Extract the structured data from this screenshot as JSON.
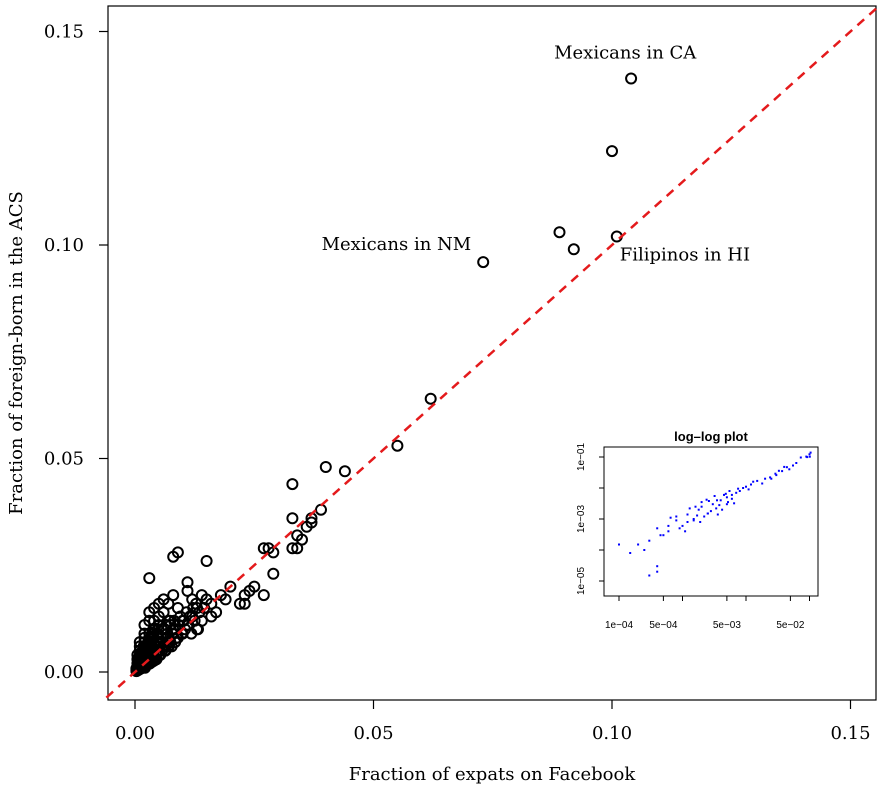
{
  "chart_data": [
    {
      "type": "scatter",
      "title": "",
      "xlabel": "Fraction of expats on Facebook",
      "ylabel": "Fraction of foreign-born in the ACS",
      "xlim": [
        -0.006,
        0.155
      ],
      "ylim": [
        -0.006,
        0.156
      ],
      "x_ticks": [
        "0.00",
        "0.05",
        "0.10",
        "0.15"
      ],
      "y_ticks": [
        "0.00",
        "0.05",
        "0.10",
        "0.15"
      ],
      "reference_line": {
        "type": "y=x",
        "color": "#e41a1c",
        "style": "dashed"
      },
      "marker": "open-circle",
      "marker_color": "#000000",
      "annotations": [
        {
          "text": "Mexicans in CA",
          "x": 0.104,
          "y": 0.139
        },
        {
          "text": "Mexicans in NM",
          "x": 0.073,
          "y": 0.096
        },
        {
          "text": "Filipinos in HI",
          "x": 0.101,
          "y": 0.102
        }
      ],
      "series": [
        {
          "x": [
            0.104,
            0.1,
            0.089,
            0.092,
            0.101,
            0.073,
            0.062,
            0.055,
            0.044,
            0.04,
            0.039,
            0.037,
            0.037,
            0.036,
            0.035,
            0.033,
            0.033,
            0.033,
            0.034,
            0.034,
            0.029,
            0.028,
            0.029,
            0.027,
            0.027,
            0.025,
            0.024,
            0.023,
            0.023,
            0.022,
            0.02,
            0.019,
            0.018,
            0.017,
            0.016,
            0.016,
            0.015,
            0.015,
            0.014,
            0.014,
            0.013,
            0.013,
            0.012,
            0.012,
            0.011,
            0.011,
            0.011,
            0.01,
            0.01,
            0.009,
            0.009,
            0.009,
            0.008,
            0.008,
            0.008,
            0.007,
            0.007,
            0.007,
            0.006,
            0.006,
            0.006,
            0.005,
            0.005,
            0.005,
            0.005,
            0.004,
            0.004,
            0.004,
            0.004,
            0.004,
            0.003,
            0.003,
            0.003,
            0.003,
            0.003,
            0.003,
            0.002,
            0.002,
            0.002,
            0.002,
            0.002,
            0.002,
            0.002,
            0.001,
            0.001,
            0.001,
            0.001,
            0.001,
            0.001,
            0.001,
            0.0005,
            0.0005,
            0.0005,
            0.0005,
            0.0008,
            0.0012,
            0.0015,
            0.0018,
            0.0022,
            0.0025,
            0.0028,
            0.0032,
            0.0035,
            0.0038,
            0.0042,
            0.0045,
            0.0048,
            0.0052,
            0.0055,
            0.0058,
            0.0062,
            0.0065,
            0.0068,
            0.0072,
            0.0075,
            0.0078,
            0.0082,
            0.0085,
            0.0088,
            0.0092,
            0.0095,
            0.0098,
            0.0102,
            0.0105,
            0.0108,
            0.0112,
            0.0115,
            0.0118,
            0.0122,
            0.0125,
            0.0128,
            0.0132,
            0.0135,
            0.0145,
            0.0008,
            0.0011,
            0.0014,
            0.0017,
            0.0021,
            0.0024,
            0.0027,
            0.0031,
            0.0034,
            0.0037,
            0.0041,
            0.0044,
            0.0047,
            0.0051,
            0.0054,
            0.0057,
            0.0061,
            0.0064,
            0.0067,
            0.0071,
            0.0074,
            0.0077,
            0.0081,
            0.0084,
            0.0087,
            0.0009,
            0.0013,
            0.0016,
            0.0019,
            0.0023,
            0.0026,
            0.0029,
            0.0033,
            0.0036,
            0.0039,
            0.0043,
            0.0046,
            0.0049,
            0.0053,
            0.0056,
            0.0059,
            0.0063,
            0.0066,
            0.0069,
            0.0073,
            0.0003,
            0.0004,
            0.0006,
            0.0007,
            0.0009,
            0.001,
            0.0012,
            0.0013,
            0.0014,
            0.0016,
            0.0017,
            0.0019,
            0.002,
            0.0021,
            0.0023,
            0.0024,
            0.0026,
            0.0027,
            0.0029,
            0.003,
            0.0003,
            0.0005,
            0.0007,
            0.0009,
            0.0011,
            0.0013,
            0.0015,
            0.0017,
            0.0019,
            0.0021,
            0.0023,
            0.0025,
            0.0027,
            0.0029,
            0.0031,
            0.0033,
            0.0035,
            0.0037,
            0.0039,
            0.0041,
            0.0003,
            0.0006,
            0.0009,
            0.0012,
            0.0015,
            0.0018,
            0.0021,
            0.0024,
            0.0027,
            0.003,
            0.0033,
            0.0036,
            0.0039,
            0.0042,
            0.0045
          ],
          "y": [
            0.139,
            0.122,
            0.103,
            0.099,
            0.102,
            0.096,
            0.064,
            0.053,
            0.047,
            0.048,
            0.038,
            0.036,
            0.035,
            0.034,
            0.031,
            0.044,
            0.036,
            0.029,
            0.029,
            0.032,
            0.028,
            0.029,
            0.023,
            0.029,
            0.018,
            0.02,
            0.019,
            0.016,
            0.018,
            0.016,
            0.02,
            0.017,
            0.018,
            0.014,
            0.016,
            0.013,
            0.026,
            0.017,
            0.018,
            0.012,
            0.015,
            0.01,
            0.013,
            0.017,
            0.021,
            0.019,
            0.011,
            0.012,
            0.009,
            0.028,
            0.015,
            0.008,
            0.027,
            0.018,
            0.01,
            0.012,
            0.016,
            0.007,
            0.017,
            0.014,
            0.006,
            0.011,
            0.013,
            0.016,
            0.005,
            0.015,
            0.01,
            0.008,
            0.003,
            0.012,
            0.022,
            0.009,
            0.007,
            0.005,
            0.012,
            0.014,
            0.011,
            0.008,
            0.006,
            0.004,
            0.009,
            0.003,
            0.007,
            0.006,
            0.004,
            0.002,
            0.005,
            0.007,
            0.003,
            0.001,
            0.003,
            0.001,
            0.002,
            0.004,
            0.002,
            0.004,
            0.003,
            0.006,
            0.005,
            0.004,
            0.007,
            0.006,
            0.005,
            0.008,
            0.006,
            0.007,
            0.009,
            0.007,
            0.008,
            0.006,
            0.01,
            0.008,
            0.009,
            0.007,
            0.011,
            0.009,
            0.012,
            0.01,
            0.008,
            0.011,
            0.013,
            0.009,
            0.012,
            0.01,
            0.014,
            0.011,
            0.013,
            0.009,
            0.015,
            0.012,
            0.016,
            0.01,
            0.014,
            0.015,
            0.001,
            0.002,
            0.003,
            0.002,
            0.001,
            0.004,
            0.003,
            0.002,
            0.005,
            0.004,
            0.003,
            0.006,
            0.005,
            0.004,
            0.007,
            0.005,
            0.006,
            0.005,
            0.008,
            0.006,
            0.007,
            0.006,
            0.009,
            0.007,
            0.008,
            0.003,
            0.001,
            0.005,
            0.004,
            0.006,
            0.002,
            0.007,
            0.004,
            0.008,
            0.005,
            0.003,
            0.009,
            0.006,
            0.004,
            0.01,
            0.007,
            0.005,
            0.011,
            0.006,
            0.012,
            0.0005,
            0.001,
            0.0008,
            0.0015,
            0.001,
            0.002,
            0.0012,
            0.0025,
            0.0015,
            0.003,
            0.0018,
            0.0035,
            0.0022,
            0.004,
            0.0025,
            0.0045,
            0.003,
            0.005,
            0.0032,
            0.0055,
            0.0008,
            0.0012,
            0.0018,
            0.0022,
            0.0028,
            0.0032,
            0.0038,
            0.0042,
            0.0048,
            0.0052,
            0.0058,
            0.0062,
            0.0068,
            0.0072,
            0.0078,
            0.0082,
            0.0088,
            0.0092,
            0.0098,
            0.0102,
            0.0002,
            0.0004,
            0.0006,
            0.0008,
            0.001,
            0.0012,
            0.0014,
            0.0016,
            0.0018,
            0.002,
            0.0022,
            0.0024,
            0.0026,
            0.0028,
            0.003
          ]
        }
      ]
    },
    {
      "type": "scatter",
      "title": "log–log plot",
      "xlabel": "",
      "ylabel": "",
      "x_scale": "log",
      "y_scale": "log",
      "xlim": [
        5e-05,
        0.15
      ],
      "ylim": [
        5e-06,
        0.15
      ],
      "x_ticks": [
        "1e−04",
        "5e−04",
        "5e−03",
        "5e−02"
      ],
      "y_ticks": [
        "1e−05",
        "1e−03",
        "1e−01"
      ],
      "marker": "dot",
      "marker_color": "#0000ff",
      "series": [
        {
          "x": [
            0.1,
            0.104,
            0.092,
            0.089,
            0.101,
            0.073,
            0.062,
            0.055,
            0.044,
            0.04,
            0.033,
            0.029,
            0.025,
            0.02,
            0.015,
            0.012,
            0.01,
            0.008,
            0.006,
            0.005,
            0.004,
            0.003,
            0.0025,
            0.002,
            0.0015,
            0.0012,
            0.001,
            0.0008,
            0.0006,
            0.0005,
            0.0004,
            0.0003,
            0.00025,
            0.0002,
            0.00015,
            0.0001,
            0.0004,
            0.0003,
            0.0004,
            0.0006,
            0.0008,
            0.0012,
            0.0018,
            0.0025,
            0.0035,
            0.005,
            0.007,
            0.009,
            0.011,
            0.0015,
            0.002,
            0.0028,
            0.0038,
            0.0045,
            0.006,
            0.0075,
            0.0016,
            0.0022,
            0.0032,
            0.0042,
            0.0055,
            0.0009,
            0.0013,
            0.0019,
            0.0026,
            0.0036,
            0.0048,
            0.0065,
            0.00045,
            0.00065,
            0.0011,
            0.0017,
            0.0024,
            0.0034,
            0.0052,
            0.013,
            0.018,
            0.024,
            0.03,
            0.037,
            0.048
          ],
          "y": [
            0.122,
            0.139,
            0.099,
            0.103,
            0.102,
            0.096,
            0.064,
            0.053,
            0.047,
            0.048,
            0.036,
            0.029,
            0.02,
            0.02,
            0.017,
            0.013,
            0.011,
            0.008,
            0.006,
            0.005,
            0.004,
            0.003,
            0.0015,
            0.0025,
            0.001,
            0.0014,
            0.0006,
            0.0009,
            0.0004,
            0.0003,
            0.0005,
            0.0002,
            0.0001,
            0.00015,
            8e-05,
            0.00015,
            2e-05,
            1.5e-05,
            3e-05,
            0.0006,
            0.0012,
            0.0008,
            0.002,
            0.0015,
            0.004,
            0.003,
            0.007,
            0.01,
            0.009,
            0.0009,
            0.0035,
            0.0018,
            0.0028,
            0.006,
            0.0045,
            0.0095,
            0.0025,
            0.0012,
            0.0055,
            0.002,
            0.008,
            0.0005,
            0.0022,
            0.0008,
            0.0038,
            0.0014,
            0.0065,
            0.0032,
            0.0003,
            0.0011,
            0.0004,
            0.0013,
            0.0042,
            0.0022,
            0.0035,
            0.016,
            0.014,
            0.022,
            0.026,
            0.035,
            0.04
          ]
        }
      ]
    }
  ]
}
